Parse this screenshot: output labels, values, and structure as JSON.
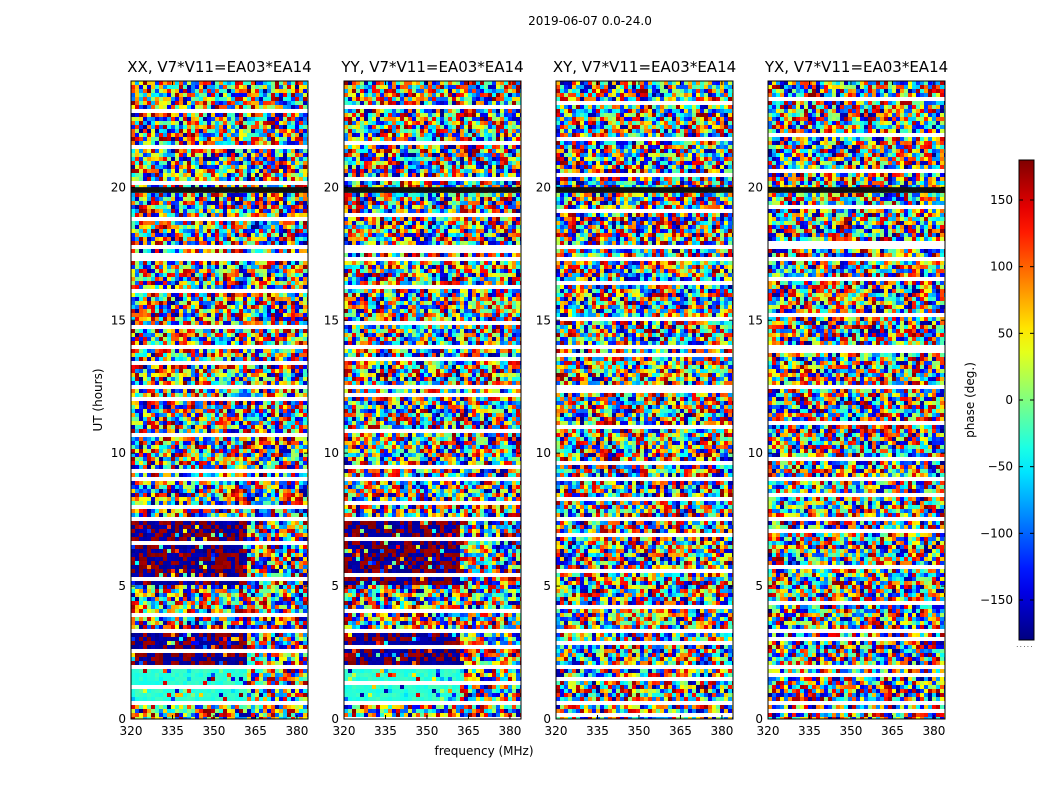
{
  "suptitle": "2019-06-07 0.0-24.0",
  "chart_data": {
    "type": "heatmap",
    "title": "2019-06-07 0.0-24.0",
    "xlabel": "frequency (MHz)",
    "ylabel": "UT (hours)",
    "colorbar_label": "phase (deg.)",
    "colorbar_range": [
      -180,
      180
    ],
    "colorbar_ticks": [
      -150,
      -100,
      -50,
      0,
      50,
      100,
      150
    ],
    "colorbar_tick_labels": [
      "−150",
      "−100",
      "−50",
      "0",
      "50",
      "100",
      "150"
    ],
    "colormap": "jet",
    "xlim": [
      320,
      384
    ],
    "ylim": [
      0,
      24
    ],
    "xticks": [
      320,
      335,
      350,
      365,
      380
    ],
    "yticks": [
      0,
      5,
      10,
      15,
      20
    ],
    "panels": [
      {
        "title": "XX, V7*V11=EA03*EA14",
        "pol": "XX"
      },
      {
        "title": "YY, V7*V11=EA03*EA14",
        "pol": "YY"
      },
      {
        "title": "XY, V7*V11=EA03*EA14",
        "pol": "XY"
      },
      {
        "title": "YX, V7*V11=EA03*EA14",
        "pol": "YX"
      }
    ],
    "flagged_bands_ut": [
      [
        0.6,
        0.7
      ],
      [
        1.1,
        1.2
      ],
      [
        1.9,
        2.0
      ],
      [
        3.3,
        3.4
      ],
      [
        5.0,
        5.05
      ],
      [
        7.45,
        7.55
      ],
      [
        9.0,
        9.05
      ],
      [
        12.4,
        12.5
      ],
      [
        13.9,
        14.0
      ],
      [
        16.2,
        16.25
      ],
      [
        17.2,
        17.4
      ],
      [
        17.7,
        17.8
      ],
      [
        21.1,
        21.2
      ],
      [
        23.2,
        23.3
      ]
    ],
    "dark_lines_ut": [
      19.85,
      19.95
    ],
    "strong_phase_regions_parallel": [
      {
        "ut": [
          0.7,
          1.9
        ],
        "freq": [
          320,
          362
        ],
        "phase_deg": -30
      },
      {
        "ut": [
          2.0,
          3.3
        ],
        "freq": [
          320,
          362
        ],
        "phase_deg": -170
      },
      {
        "ut": [
          5.1,
          7.4
        ],
        "freq": [
          320,
          362
        ],
        "phase_deg": -170
      }
    ]
  }
}
